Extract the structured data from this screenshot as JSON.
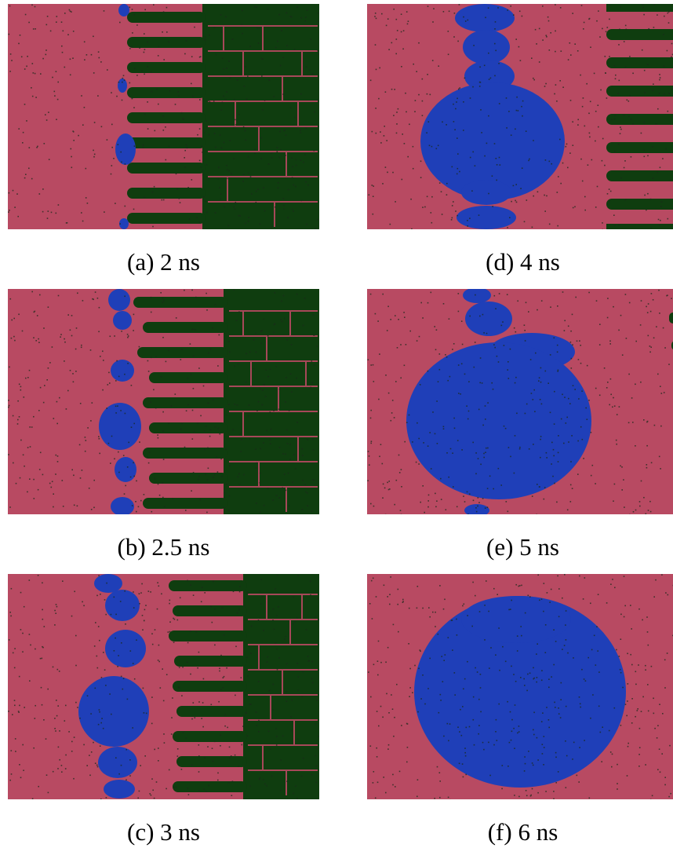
{
  "figure": {
    "panels": [
      {
        "id": "a",
        "caption": "(a) 2 ns"
      },
      {
        "id": "d",
        "caption": "(d) 4 ns"
      },
      {
        "id": "b",
        "caption": "(b) 2.5 ns"
      },
      {
        "id": "e",
        "caption": "(e) 5 ns"
      },
      {
        "id": "c",
        "caption": "(c) 3 ns"
      },
      {
        "id": "f",
        "caption": "(f) 6 ns"
      }
    ],
    "colors": {
      "matrix": "#b84a62",
      "grain": "#0f3d0f",
      "nucleus": "#1f3fb8",
      "defect": "#1a2a1a"
    }
  }
}
